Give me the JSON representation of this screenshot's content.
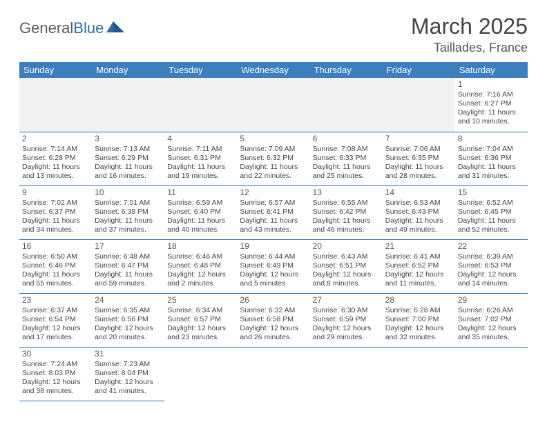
{
  "logo": {
    "general": "General",
    "blue": "Blue"
  },
  "title": "March 2025",
  "location": "Taillades, France",
  "colors": {
    "header_bg": "#3b7fbf",
    "border": "#2f6fa8",
    "text": "#444444",
    "logo_gray": "#5a5a5a",
    "logo_blue": "#2f6fa8"
  },
  "weekdays": [
    "Sunday",
    "Monday",
    "Tuesday",
    "Wednesday",
    "Thursday",
    "Friday",
    "Saturday"
  ],
  "weeks": [
    [
      null,
      null,
      null,
      null,
      null,
      null,
      {
        "day": "1",
        "sunrise": "Sunrise: 7:16 AM",
        "sunset": "Sunset: 6:27 PM",
        "daylight1": "Daylight: 11 hours",
        "daylight2": "and 10 minutes."
      }
    ],
    [
      {
        "day": "2",
        "sunrise": "Sunrise: 7:14 AM",
        "sunset": "Sunset: 6:28 PM",
        "daylight1": "Daylight: 11 hours",
        "daylight2": "and 13 minutes."
      },
      {
        "day": "3",
        "sunrise": "Sunrise: 7:13 AM",
        "sunset": "Sunset: 6:29 PM",
        "daylight1": "Daylight: 11 hours",
        "daylight2": "and 16 minutes."
      },
      {
        "day": "4",
        "sunrise": "Sunrise: 7:11 AM",
        "sunset": "Sunset: 6:31 PM",
        "daylight1": "Daylight: 11 hours",
        "daylight2": "and 19 minutes."
      },
      {
        "day": "5",
        "sunrise": "Sunrise: 7:09 AM",
        "sunset": "Sunset: 6:32 PM",
        "daylight1": "Daylight: 11 hours",
        "daylight2": "and 22 minutes."
      },
      {
        "day": "6",
        "sunrise": "Sunrise: 7:08 AM",
        "sunset": "Sunset: 6:33 PM",
        "daylight1": "Daylight: 11 hours",
        "daylight2": "and 25 minutes."
      },
      {
        "day": "7",
        "sunrise": "Sunrise: 7:06 AM",
        "sunset": "Sunset: 6:35 PM",
        "daylight1": "Daylight: 11 hours",
        "daylight2": "and 28 minutes."
      },
      {
        "day": "8",
        "sunrise": "Sunrise: 7:04 AM",
        "sunset": "Sunset: 6:36 PM",
        "daylight1": "Daylight: 11 hours",
        "daylight2": "and 31 minutes."
      }
    ],
    [
      {
        "day": "9",
        "sunrise": "Sunrise: 7:02 AM",
        "sunset": "Sunset: 6:37 PM",
        "daylight1": "Daylight: 11 hours",
        "daylight2": "and 34 minutes."
      },
      {
        "day": "10",
        "sunrise": "Sunrise: 7:01 AM",
        "sunset": "Sunset: 6:38 PM",
        "daylight1": "Daylight: 11 hours",
        "daylight2": "and 37 minutes."
      },
      {
        "day": "11",
        "sunrise": "Sunrise: 6:59 AM",
        "sunset": "Sunset: 6:40 PM",
        "daylight1": "Daylight: 11 hours",
        "daylight2": "and 40 minutes."
      },
      {
        "day": "12",
        "sunrise": "Sunrise: 6:57 AM",
        "sunset": "Sunset: 6:41 PM",
        "daylight1": "Daylight: 11 hours",
        "daylight2": "and 43 minutes."
      },
      {
        "day": "13",
        "sunrise": "Sunrise: 6:55 AM",
        "sunset": "Sunset: 6:42 PM",
        "daylight1": "Daylight: 11 hours",
        "daylight2": "and 46 minutes."
      },
      {
        "day": "14",
        "sunrise": "Sunrise: 6:53 AM",
        "sunset": "Sunset: 6:43 PM",
        "daylight1": "Daylight: 11 hours",
        "daylight2": "and 49 minutes."
      },
      {
        "day": "15",
        "sunrise": "Sunrise: 6:52 AM",
        "sunset": "Sunset: 6:45 PM",
        "daylight1": "Daylight: 11 hours",
        "daylight2": "and 52 minutes."
      }
    ],
    [
      {
        "day": "16",
        "sunrise": "Sunrise: 6:50 AM",
        "sunset": "Sunset: 6:46 PM",
        "daylight1": "Daylight: 11 hours",
        "daylight2": "and 55 minutes."
      },
      {
        "day": "17",
        "sunrise": "Sunrise: 6:48 AM",
        "sunset": "Sunset: 6:47 PM",
        "daylight1": "Daylight: 11 hours",
        "daylight2": "and 59 minutes."
      },
      {
        "day": "18",
        "sunrise": "Sunrise: 6:46 AM",
        "sunset": "Sunset: 6:48 PM",
        "daylight1": "Daylight: 12 hours",
        "daylight2": "and 2 minutes."
      },
      {
        "day": "19",
        "sunrise": "Sunrise: 6:44 AM",
        "sunset": "Sunset: 6:49 PM",
        "daylight1": "Daylight: 12 hours",
        "daylight2": "and 5 minutes."
      },
      {
        "day": "20",
        "sunrise": "Sunrise: 6:43 AM",
        "sunset": "Sunset: 6:51 PM",
        "daylight1": "Daylight: 12 hours",
        "daylight2": "and 8 minutes."
      },
      {
        "day": "21",
        "sunrise": "Sunrise: 6:41 AM",
        "sunset": "Sunset: 6:52 PM",
        "daylight1": "Daylight: 12 hours",
        "daylight2": "and 11 minutes."
      },
      {
        "day": "22",
        "sunrise": "Sunrise: 6:39 AM",
        "sunset": "Sunset: 6:53 PM",
        "daylight1": "Daylight: 12 hours",
        "daylight2": "and 14 minutes."
      }
    ],
    [
      {
        "day": "23",
        "sunrise": "Sunrise: 6:37 AM",
        "sunset": "Sunset: 6:54 PM",
        "daylight1": "Daylight: 12 hours",
        "daylight2": "and 17 minutes."
      },
      {
        "day": "24",
        "sunrise": "Sunrise: 6:35 AM",
        "sunset": "Sunset: 6:56 PM",
        "daylight1": "Daylight: 12 hours",
        "daylight2": "and 20 minutes."
      },
      {
        "day": "25",
        "sunrise": "Sunrise: 6:34 AM",
        "sunset": "Sunset: 6:57 PM",
        "daylight1": "Daylight: 12 hours",
        "daylight2": "and 23 minutes."
      },
      {
        "day": "26",
        "sunrise": "Sunrise: 6:32 AM",
        "sunset": "Sunset: 6:58 PM",
        "daylight1": "Daylight: 12 hours",
        "daylight2": "and 26 minutes."
      },
      {
        "day": "27",
        "sunrise": "Sunrise: 6:30 AM",
        "sunset": "Sunset: 6:59 PM",
        "daylight1": "Daylight: 12 hours",
        "daylight2": "and 29 minutes."
      },
      {
        "day": "28",
        "sunrise": "Sunrise: 6:28 AM",
        "sunset": "Sunset: 7:00 PM",
        "daylight1": "Daylight: 12 hours",
        "daylight2": "and 32 minutes."
      },
      {
        "day": "29",
        "sunrise": "Sunrise: 6:26 AM",
        "sunset": "Sunset: 7:02 PM",
        "daylight1": "Daylight: 12 hours",
        "daylight2": "and 35 minutes."
      }
    ],
    [
      {
        "day": "30",
        "sunrise": "Sunrise: 7:24 AM",
        "sunset": "Sunset: 8:03 PM",
        "daylight1": "Daylight: 12 hours",
        "daylight2": "and 38 minutes."
      },
      {
        "day": "31",
        "sunrise": "Sunrise: 7:23 AM",
        "sunset": "Sunset: 8:04 PM",
        "daylight1": "Daylight: 12 hours",
        "daylight2": "and 41 minutes."
      },
      null,
      null,
      null,
      null,
      null
    ]
  ]
}
